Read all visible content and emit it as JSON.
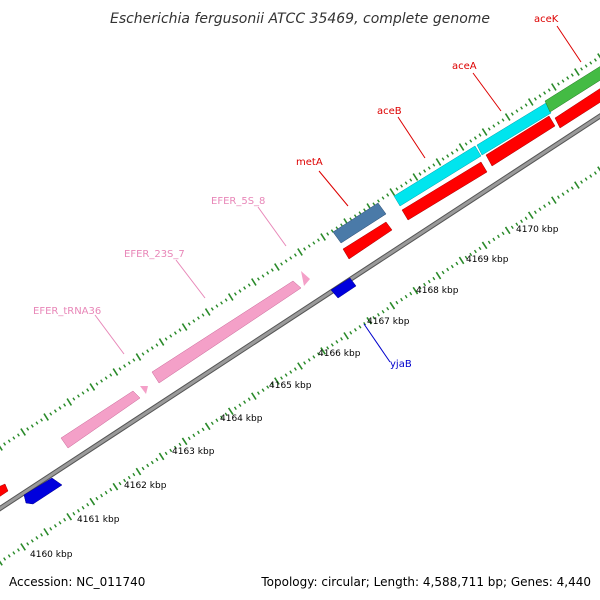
{
  "title": "Escherichia fergusonii ATCC 35469, complete genome",
  "footer": {
    "accession": "Accession: NC_011740",
    "summary": "Topology: circular; Length: 4,588,711 bp; Genes: 4,440"
  },
  "kbp_labels": [
    "4160 kbp",
    "4161 kbp",
    "4162 kbp",
    "4163 kbp",
    "4164 kbp",
    "4165 kbp",
    "4166 kbp",
    "4167 kbp",
    "4168 kbp",
    "4169 kbp",
    "4170 kbp"
  ],
  "genes": {
    "acek": "aceK",
    "acea": "aceA",
    "aceb": "aceB",
    "meta": "metA",
    "efer_5s_8": "EFER_5S_8",
    "efer_23s_7": "EFER_23S_7",
    "efer_trna36": "EFER_tRNA36",
    "yjab": "yjaB"
  },
  "colors": {
    "backbone": "#8a8a8a",
    "tick": "#2a8a2a",
    "cds_forward": "#ff0000",
    "cds_reverse": "#0000dd",
    "rrna": "#f4a0c8",
    "trna": "#f4a0c8",
    "gene_blue": "#4a7aa8",
    "gene_cyan": "#00e5ee",
    "gene_green": "#44bb44",
    "label_red": "#dd0000",
    "label_pink": "#e887b8",
    "label_blue": "#0000cc"
  }
}
